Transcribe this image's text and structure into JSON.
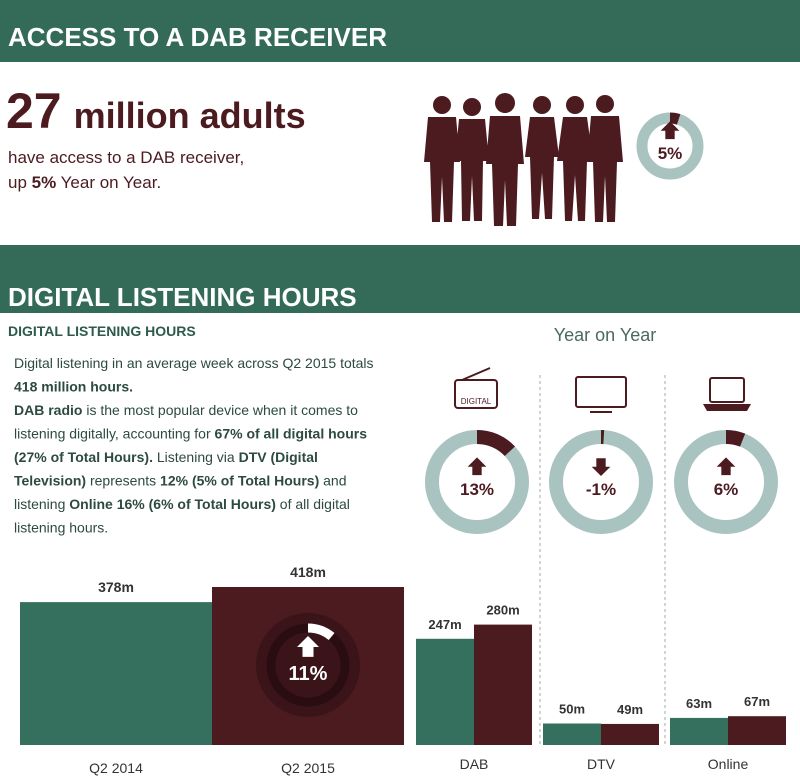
{
  "access": {
    "heading": "ACCESS TO A DAB RECEIVER",
    "headline_number": "27",
    "headline_rest": "million adults",
    "lines": [
      [
        {
          "text": "have access to a DAB receiver,",
          "bold": false
        }
      ],
      [
        {
          "text": "up ",
          "bold": false
        },
        {
          "text": "5%",
          "bold": true
        },
        {
          "text": " Year on Year.",
          "bold": false
        }
      ]
    ],
    "gauge": {
      "value": 5,
      "label": "5%"
    }
  },
  "listening": {
    "heading": "DIGITAL LISTENING HOURS",
    "subheading": "DIGITAL LISTENING HOURS",
    "lines": [
      [
        {
          "text": "Digital listening in an average week across  Q2 2015 totals",
          "bold": false
        }
      ],
      [
        {
          "text": "418 million hours.",
          "bold": true
        }
      ],
      [
        {
          "text": "DAB radio",
          "bold": true
        },
        {
          "text": " is  the most popular device when it comes to",
          "bold": false
        }
      ],
      [
        {
          "text": "listening digitally, accounting for ",
          "bold": false
        },
        {
          "text": "67% of all digital hours",
          "bold": true
        }
      ],
      [
        {
          "text": "(27% of Total Hours).",
          "bold": true
        },
        {
          "text": " Listening via ",
          "bold": false
        },
        {
          "text": "DTV (Digital",
          "bold": true
        }
      ],
      [
        {
          "text": "Television)",
          "bold": true
        },
        {
          "text": " represents ",
          "bold": false
        },
        {
          "text": "12% (5% of Total Hours)",
          "bold": true
        },
        {
          "text": " and",
          "bold": false
        }
      ],
      [
        {
          "text": "listening ",
          "bold": false
        },
        {
          "text": "Online 16% (6% of Total Hours)",
          "bold": true
        },
        {
          "text": " of all digital",
          "bold": false
        }
      ],
      [
        {
          "text": "listening hours.",
          "bold": false
        }
      ]
    ],
    "yoy_title": "Year on Year",
    "radio_icon_label": "DIGITAL",
    "totals": {
      "type": "bar",
      "categories": [
        "Q2 2014",
        "Q2 2015"
      ],
      "values": [
        378,
        418
      ],
      "value_labels": [
        "378m",
        "418m"
      ],
      "colors": [
        "#35705e",
        "#4b1b20"
      ],
      "gauge": {
        "value": 11,
        "label": "11%"
      }
    },
    "devices": {
      "type": "grouped-bar",
      "colors": [
        "#35705e",
        "#4b1b20"
      ],
      "groups": [
        {
          "category": "DAB",
          "values": [
            247,
            280
          ],
          "value_labels": [
            "247m",
            "280m"
          ],
          "yoy": {
            "value": 13,
            "label": "13%"
          }
        },
        {
          "category": "DTV",
          "values": [
            50,
            49
          ],
          "value_labels": [
            "50m",
            "49m"
          ],
          "yoy": {
            "value": -1,
            "label": "-1%"
          }
        },
        {
          "category": "Online",
          "values": [
            63,
            67
          ],
          "value_labels": [
            "63m",
            "67m"
          ],
          "yoy": {
            "value": 6,
            "label": "6%"
          }
        }
      ]
    }
  }
}
